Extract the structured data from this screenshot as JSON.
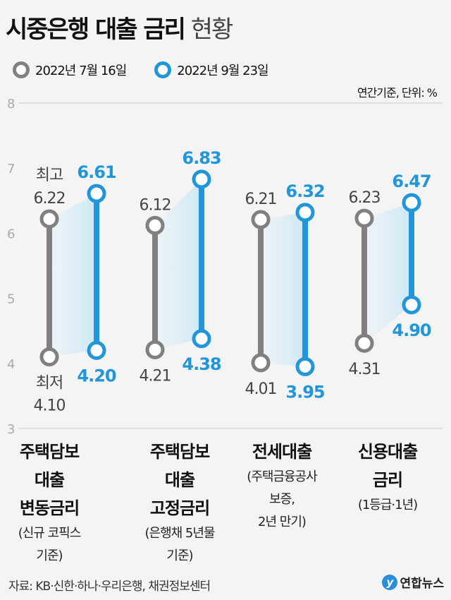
{
  "header": {
    "title_bold": "시중은행 대출 금리",
    "title_light": "현황",
    "unit": "연간기준, 단위: %"
  },
  "colors": {
    "series1": "#808080",
    "series2": "#2196d8",
    "band": "#cde8f4"
  },
  "chart_data": {
    "type": "range",
    "ylim": [
      3,
      8
    ],
    "yticks": [
      "3",
      "4",
      "5",
      "6",
      "7",
      "8"
    ],
    "grid": "top-bottom",
    "legend_placement": "top-left",
    "series": [
      {
        "name": "2022년 7월 16일",
        "high": [
          6.22,
          6.12,
          6.21,
          6.23
        ],
        "low": [
          4.1,
          4.21,
          4.01,
          4.31
        ],
        "high_labels": [
          "6.22",
          "6.12",
          "6.21",
          "6.23"
        ],
        "low_labels": [
          "4.10",
          "4.21",
          "4.01",
          "4.31"
        ]
      },
      {
        "name": "2022년 9월 23일",
        "high": [
          6.61,
          6.83,
          6.32,
          6.47
        ],
        "low": [
          4.2,
          4.38,
          3.95,
          4.9
        ],
        "high_labels": [
          "6.61",
          "6.83",
          "6.32",
          "6.47"
        ],
        "low_labels": [
          "4.20",
          "4.38",
          "3.95",
          "4.90"
        ]
      }
    ],
    "annotations": {
      "high": "최고",
      "low": "최저"
    },
    "categories": [
      {
        "main": "주택담보\n대출\n변동금리",
        "sub": "(신규 코픽스\n기준)"
      },
      {
        "main": "주택담보\n대출\n고정금리",
        "sub": "(은행채 5년물\n기준)"
      },
      {
        "main": "전세대출",
        "sub": "(주택금융공사\n보증,\n2년 만기)"
      },
      {
        "main": "신용대출\n금리",
        "sub": "(1등급·1년)"
      }
    ]
  },
  "footer": {
    "source": "자료: KB·신한·하나·우리은행, 채권정보센터",
    "logo": "연합뉴스",
    "logo_mark": "y"
  }
}
